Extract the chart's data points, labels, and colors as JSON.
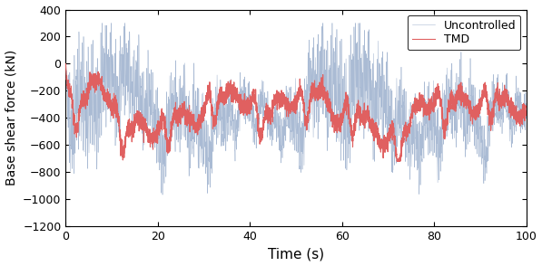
{
  "title": "",
  "xlabel": "Time (s)",
  "ylabel": "Base shear force (kN)",
  "xlim": [
    0,
    100
  ],
  "ylim": [
    -1200,
    400
  ],
  "yticks": [
    -1200,
    -1000,
    -800,
    -600,
    -400,
    -200,
    0,
    200,
    400
  ],
  "xticks": [
    0,
    20,
    40,
    60,
    80,
    100
  ],
  "uncontrolled_color": "#AABBD4",
  "tmd_color": "#E06060",
  "legend_labels": [
    "Uncontrolled",
    "TMD"
  ],
  "dt": 0.02,
  "t_end": 100,
  "mean_force": -350,
  "figsize": [
    5.97,
    2.94
  ],
  "dpi": 100
}
